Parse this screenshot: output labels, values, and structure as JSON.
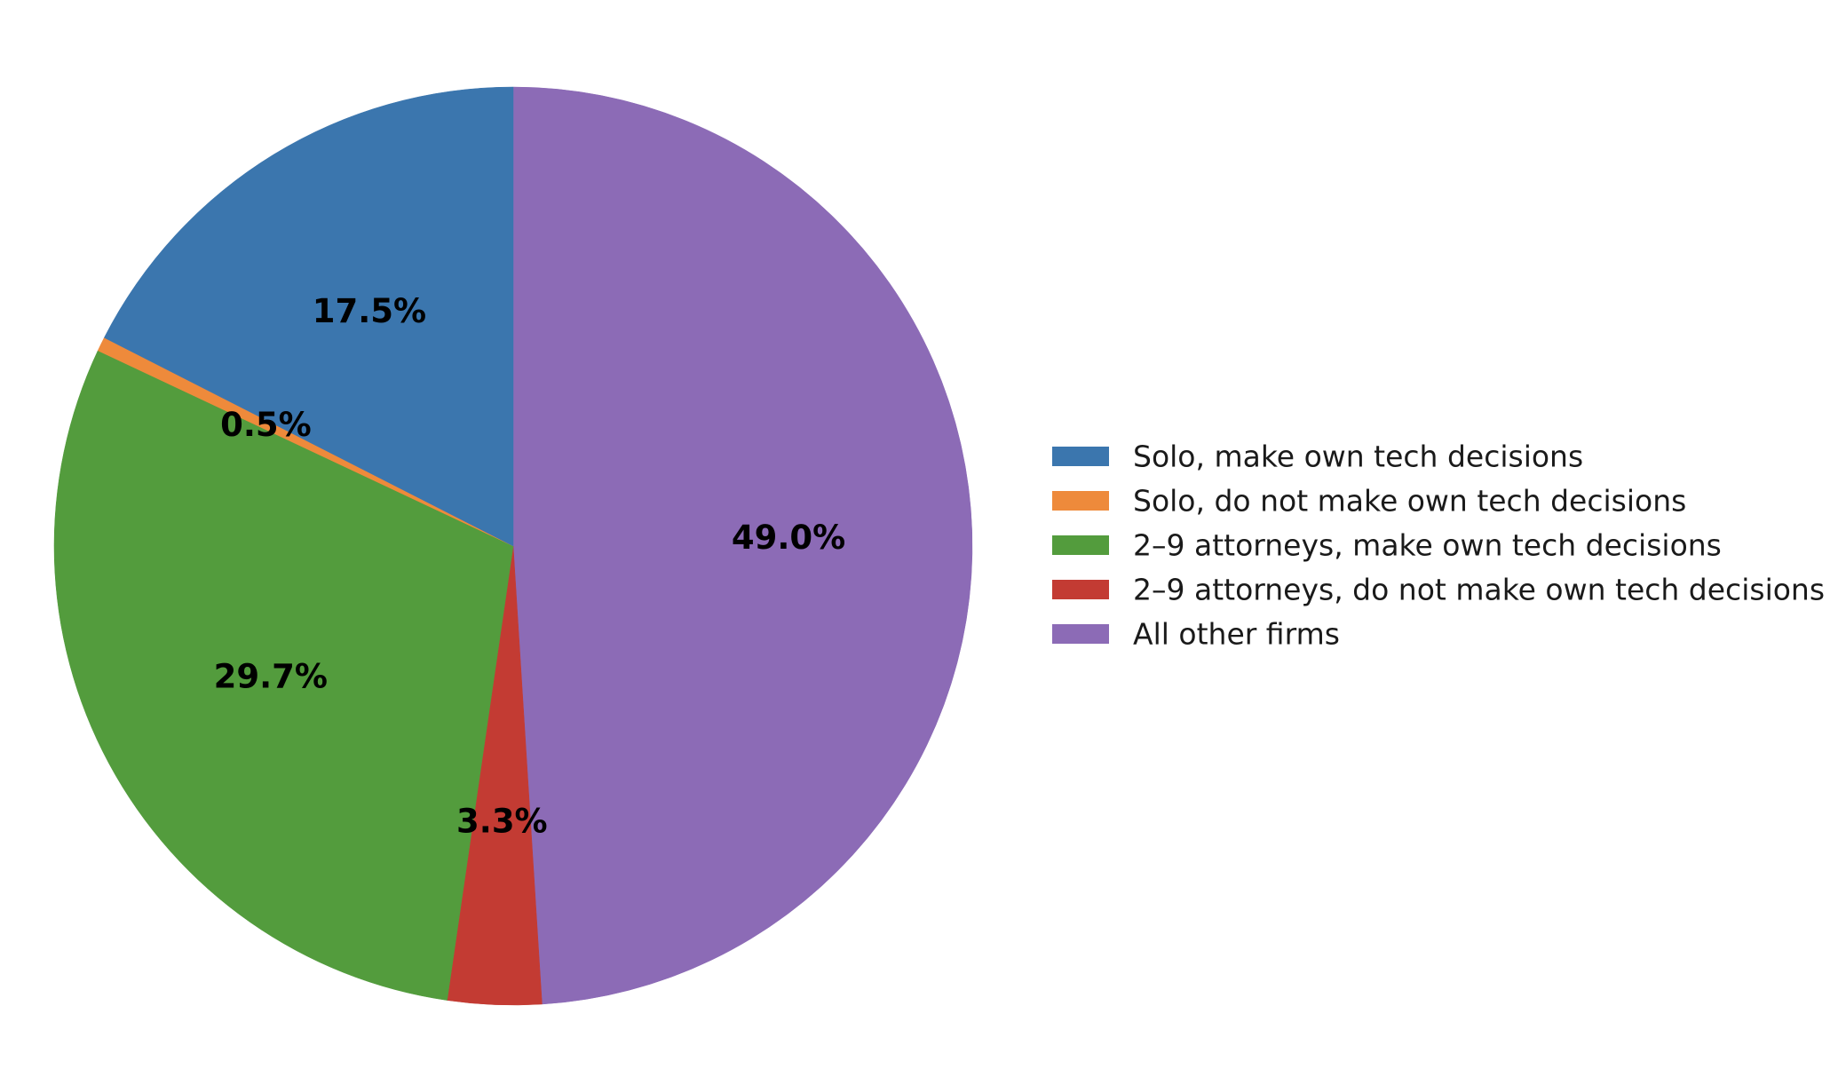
{
  "chart_data": {
    "type": "pie",
    "start_angle": 90,
    "direction": "clockwise",
    "legend_position": "right",
    "slices": [
      {
        "label": "All other firms",
        "value": 49.0,
        "display": "49.0%",
        "color": "#8c6bb6"
      },
      {
        "label": "2–9 attorneys, do not make own tech decisions",
        "value": 3.3,
        "display": "3.3%",
        "color": "#c33b33"
      },
      {
        "label": "2–9 attorneys, make own tech decisions",
        "value": 29.7,
        "display": "29.7%",
        "color": "#539c3d"
      },
      {
        "label": "Solo, do not make own tech decisions",
        "value": 0.5,
        "display": "0.5%",
        "color": "#ee8a3b"
      },
      {
        "label": "Solo, make own tech decisions",
        "value": 17.5,
        "display": "17.5%",
        "color": "#3b76ae"
      }
    ],
    "legend": [
      {
        "label": "Solo, make own tech decisions",
        "color": "#3b76ae"
      },
      {
        "label": "Solo, do not make own tech decisions",
        "color": "#ee8a3b"
      },
      {
        "label": "2–9 attorneys, make own tech decisions",
        "color": "#539c3d"
      },
      {
        "label": "2–9 attorneys, do not make own tech decisions",
        "color": "#c33b33"
      },
      {
        "label": "All other firms",
        "color": "#8c6bb6"
      }
    ]
  }
}
